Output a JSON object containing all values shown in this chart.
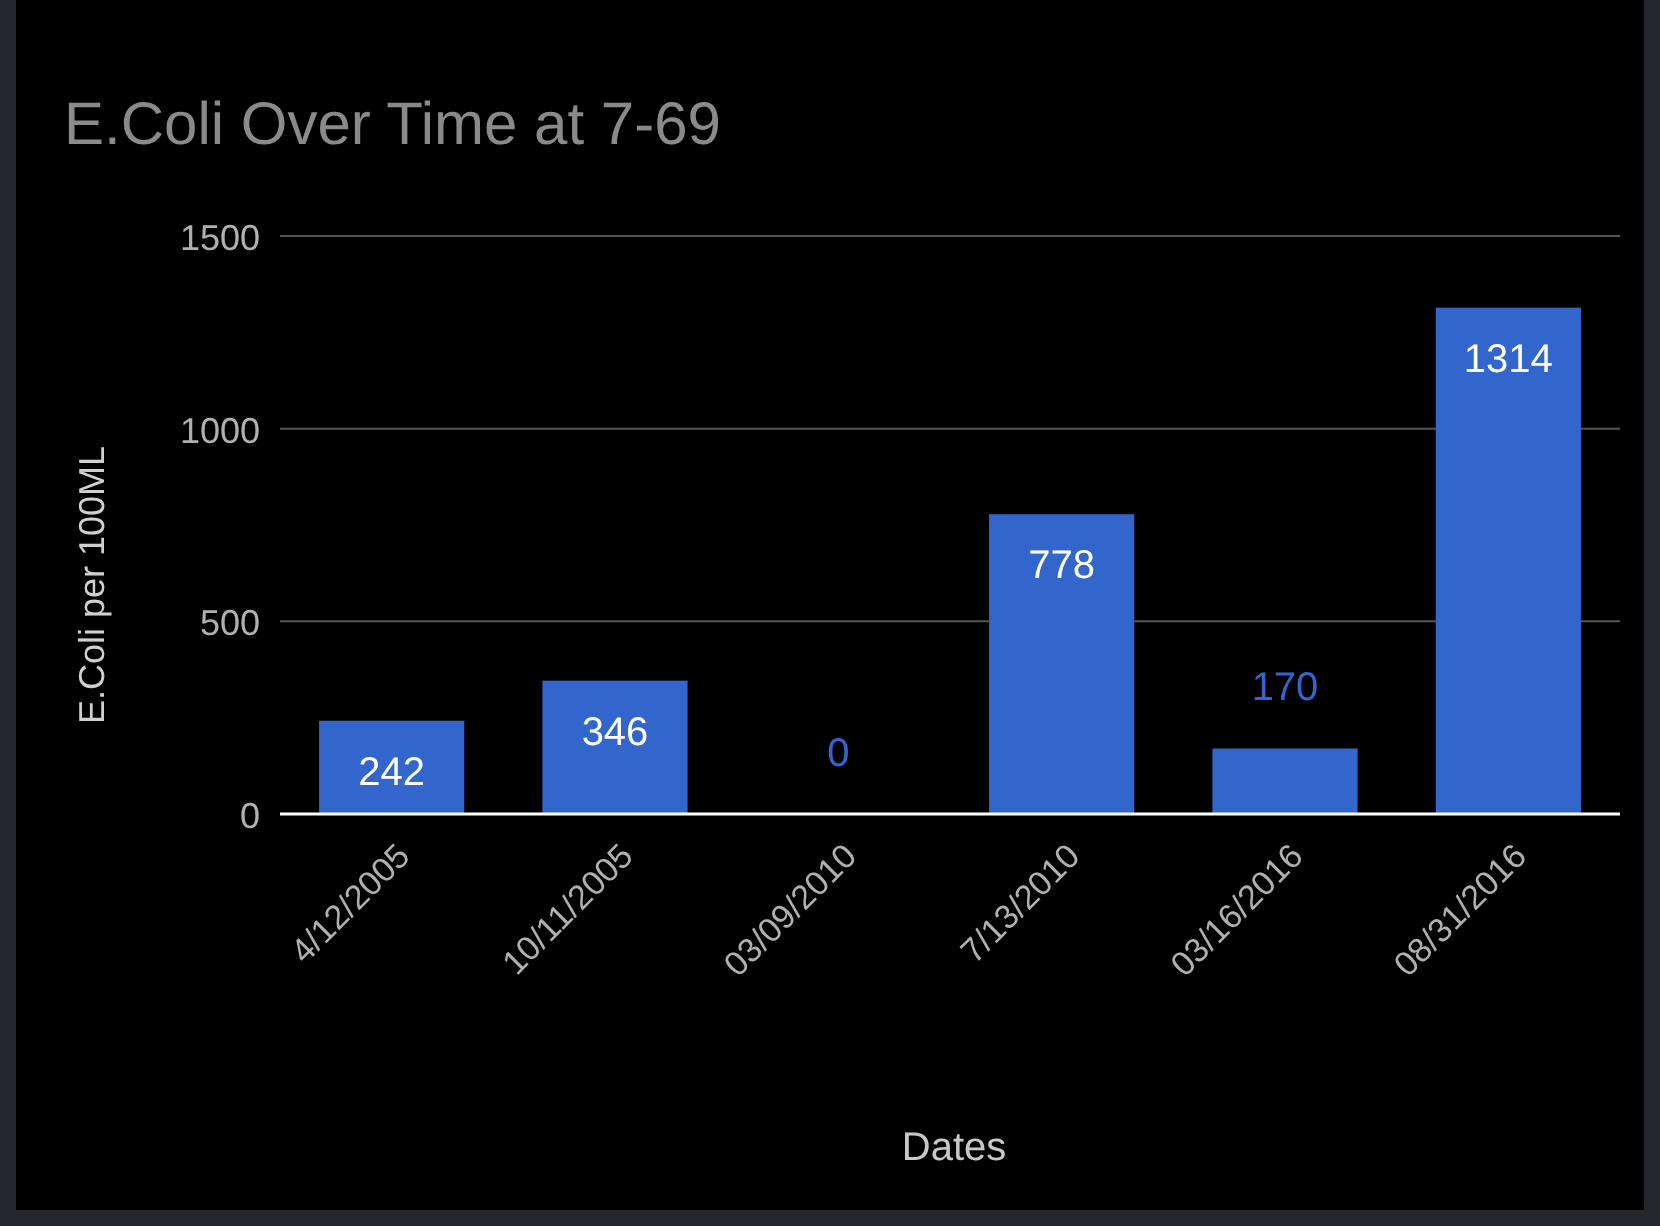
{
  "chart_data": {
    "type": "bar",
    "title": "E.Coli Over Time at 7-69",
    "xlabel": "Dates",
    "ylabel": "E.Coli per 100ML",
    "categories": [
      "4/12/2005",
      "10/11/2005",
      "03/09/2010",
      "7/13/2010",
      "03/16/2016",
      "08/31/2016"
    ],
    "values": [
      242,
      346,
      0,
      778,
      170,
      1314
    ],
    "color": "#3366cc",
    "ylim": [
      0,
      1500
    ],
    "yticks": [
      0,
      500,
      1000,
      1500
    ],
    "grid": "y",
    "data_labels": true
  }
}
